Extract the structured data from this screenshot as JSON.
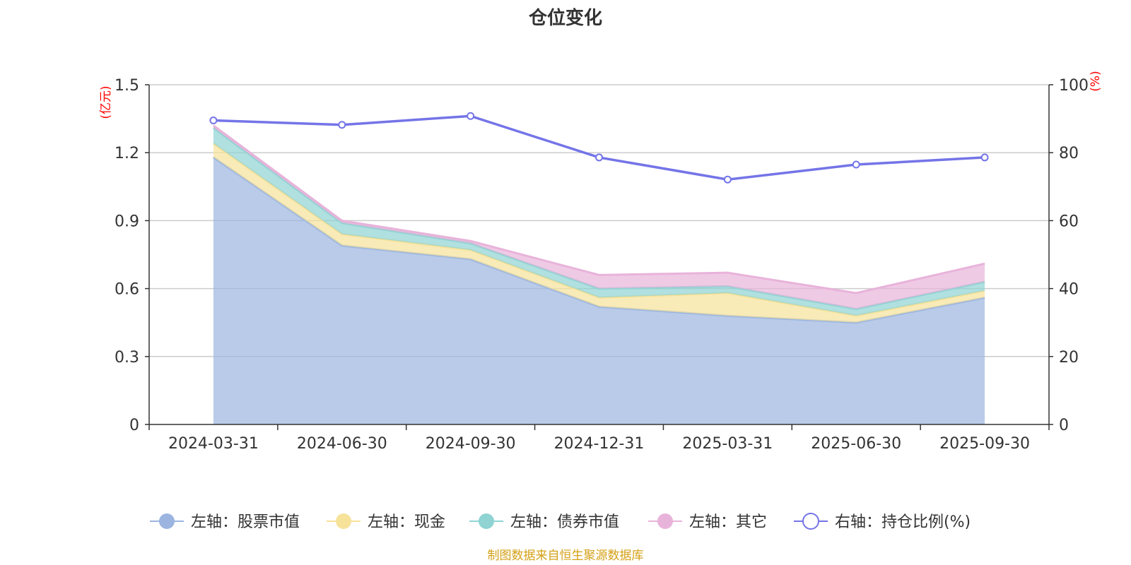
{
  "chart_data": {
    "type": "area",
    "title": "仓位变化",
    "categories": [
      "2024-03-31",
      "2024-06-30",
      "2024-09-30",
      "2024-12-31",
      "2025-03-31",
      "2025-06-30",
      "2025-09-30"
    ],
    "left_axis": {
      "unit": "(亿元)",
      "ylim": [
        0,
        1.5
      ],
      "ticks": [
        "0",
        "0.3",
        "0.6",
        "0.9",
        "1.2",
        "1.5"
      ]
    },
    "right_axis": {
      "unit": "(%)",
      "ylim": [
        0,
        100
      ],
      "ticks": [
        "0",
        "20",
        "40",
        "60",
        "80",
        "100"
      ]
    },
    "series": [
      {
        "name": "左轴：股票市值",
        "axis": "left",
        "stack": true,
        "color": "#9bb5e0",
        "values": [
          1.18,
          0.79,
          0.73,
          0.52,
          0.48,
          0.45,
          0.56
        ]
      },
      {
        "name": "左轴：现金",
        "axis": "left",
        "stack": true,
        "color": "#f7e29a",
        "values": [
          0.06,
          0.05,
          0.04,
          0.04,
          0.1,
          0.03,
          0.03
        ]
      },
      {
        "name": "左轴：债券市值",
        "axis": "left",
        "stack": true,
        "color": "#8fd3d3",
        "values": [
          0.07,
          0.05,
          0.03,
          0.04,
          0.03,
          0.03,
          0.04
        ]
      },
      {
        "name": "左轴：其它",
        "axis": "left",
        "stack": true,
        "color": "#e8b3da",
        "values": [
          0.01,
          0.01,
          0.01,
          0.06,
          0.06,
          0.07,
          0.08
        ]
      },
      {
        "name": "右轴：持仓比例(%)",
        "axis": "right",
        "stack": false,
        "color": "#7474e8",
        "values": [
          89.5,
          88.2,
          90.8,
          78.6,
          72.1,
          76.5,
          78.6
        ]
      }
    ],
    "grid": true,
    "legend_position": "bottom"
  },
  "source": "制图数据来自恒生聚源数据库"
}
